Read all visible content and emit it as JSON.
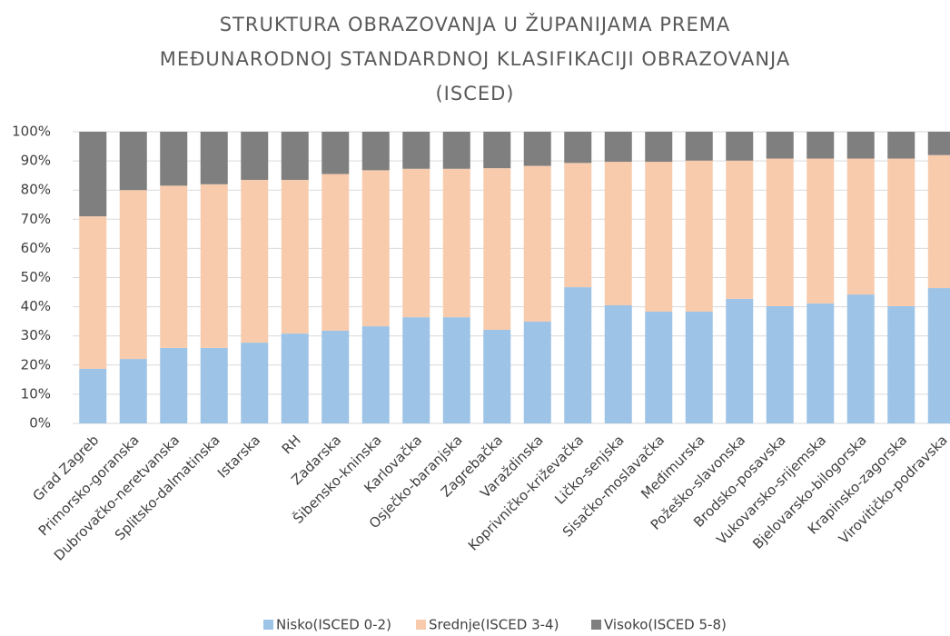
{
  "chart_data": {
    "type": "stacked_bar",
    "title": [
      "STRUKTURA OBRAZOVANJA U ŽUPANIJAMA PREMA",
      "MEĐUNARODNOJ STANDARDNOJ KLASIFIKACIJI OBRAZOVANJA",
      "(ISCED)"
    ],
    "categories": [
      "Grad Zagreb",
      "Primorsko-goranska",
      "Dubrovačko-neretvanska",
      "Splitsko-dalmatinska",
      "Istarska",
      "RH",
      "Zadarska",
      "Šibensko-kninska",
      "Karlovačka",
      "Osječko-baranjska",
      "Zagrebačka",
      "Varaždinska",
      "Koprivničko-križevačka",
      "Ličko-senjska",
      "Sisačko-moslavačka",
      "Međimurska",
      "Požeško-slavonska",
      "Brodsko-posavska",
      "Vukovarsko-srijemska",
      "Bjelovarsko-bilogorska",
      "Krapinsko-zagorska",
      "Virovitičko-podravska"
    ],
    "series": [
      {
        "name": "Nisko(ISCED 0-2)",
        "color": "#9dc3e6",
        "values": [
          18.7,
          22.1,
          25.9,
          25.9,
          27.7,
          30.8,
          31.8,
          33.3,
          36.4,
          36.4,
          32.1,
          34.9,
          46.7,
          40.5,
          38.3,
          38.3,
          42.7,
          40.2,
          41.1,
          44.2,
          40.2,
          46.4
        ]
      },
      {
        "name": "Srednje(ISCED 3-4)",
        "color": "#f8cbad",
        "values": [
          52.3,
          57.9,
          55.6,
          56.1,
          55.8,
          52.7,
          53.7,
          53.5,
          50.9,
          50.9,
          55.4,
          53.4,
          42.6,
          49.2,
          51.4,
          51.8,
          47.4,
          50.6,
          49.7,
          46.6,
          50.6,
          45.6
        ]
      },
      {
        "name": "Visoko(ISCED 5-8)",
        "color": "#7f7f7f",
        "values": [
          29,
          20,
          18.5,
          18,
          16.5,
          16.5,
          14.5,
          13.2,
          12.7,
          12.7,
          12.5,
          11.7,
          10.7,
          10.3,
          10.3,
          9.9,
          9.9,
          9.2,
          9.2,
          9.2,
          9.2,
          8
        ]
      }
    ],
    "ylim": [
      0,
      100
    ],
    "yticks": [
      {
        "value": 0,
        "label": "0%"
      },
      {
        "value": 10,
        "label": "10%"
      },
      {
        "value": 20,
        "label": "20%"
      },
      {
        "value": 30,
        "label": "30%"
      },
      {
        "value": 40,
        "label": "40%"
      },
      {
        "value": 50,
        "label": "50%"
      },
      {
        "value": 60,
        "label": "60%"
      },
      {
        "value": 70,
        "label": "70%"
      },
      {
        "value": 80,
        "label": "80%"
      },
      {
        "value": 90,
        "label": "90%"
      },
      {
        "value": 100,
        "label": "100%"
      }
    ],
    "grid": true,
    "legend": "bottom"
  }
}
